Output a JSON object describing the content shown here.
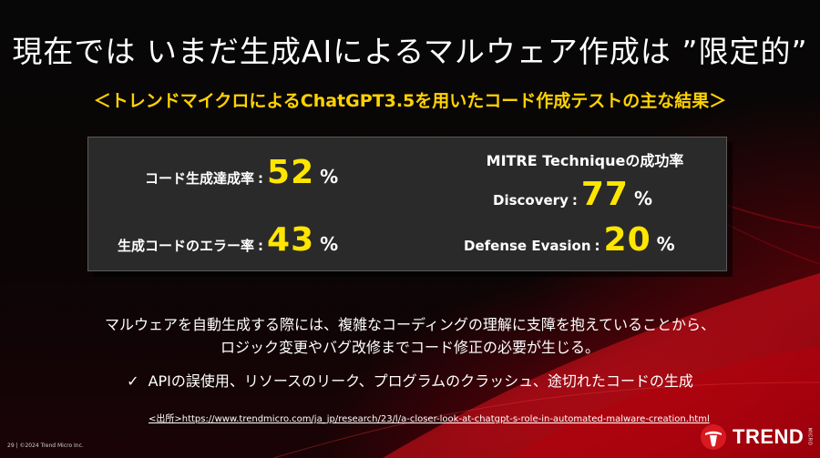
{
  "slide": {
    "title": "現在では いまだ生成AIによるマルウェア作成は ”限定的”",
    "subtitle": "＜トレンドマイクロによるChatGPT3.5を用いたコード作成テストの主な結果＞"
  },
  "stats": {
    "code_success": {
      "label": "コード生成達成率",
      "colon": ":",
      "value": "52",
      "unit": "%"
    },
    "error_rate": {
      "label": "生成コードのエラー率",
      "colon": ":",
      "value": "43",
      "unit": "%"
    },
    "mitre_heading": "MITRE Techniqueの成功率",
    "discovery": {
      "label": "Discovery",
      "colon": ":",
      "value": "77",
      "unit": "%"
    },
    "defense_evasion": {
      "label": "Defense Evasion",
      "colon": ":",
      "value": "20",
      "unit": "%"
    }
  },
  "body": {
    "paragraph_line1": "マルウェアを自動生成する際には、複雑なコーディングの理解に支障を抱えていることから、",
    "paragraph_line2": "ロジック変更やバグ改修までコード修正の必要が生じる。",
    "bullet_mark": "✓",
    "bullet_text": "APIの誤使用、リソースのリーク、プログラムのクラッシュ、途切れたコードの生成"
  },
  "footer": {
    "page_info": "29 | ©2024 Trend Micro Inc.",
    "source": "<出所>https://www.trendmicro.com/ja_jp/research/23/l/a-closer-look-at-chatgpt-s-role-in-automated-malware-creation.html",
    "logo_text": "TREND",
    "logo_sub": "MICRO"
  },
  "colors": {
    "accent_yellow": "#ffd200",
    "value_yellow": "#ffe600",
    "brand_red": "#d71920",
    "panel_bg": "#2a2a2a"
  }
}
